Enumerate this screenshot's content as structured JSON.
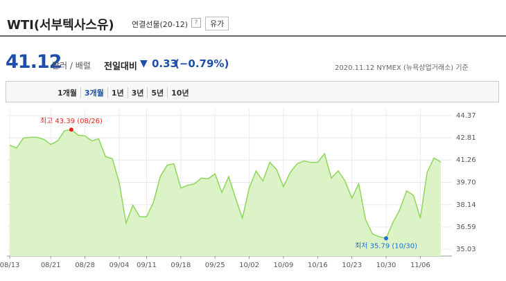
{
  "header": {
    "title": "WTI(서부텍사스유)",
    "subtitle": "연결선물(20-12)",
    "help": "?",
    "button": "유가"
  },
  "quote": {
    "price": "41.12",
    "unit": "달러 / 배럴",
    "change_label": "전일대비",
    "direction": "▼",
    "change": "0.33",
    "change_pct": "(−0.79%)",
    "asof": "2020.11.12 NYMEX (뉴욕상업거래소) 기준"
  },
  "tabs": {
    "items": [
      "1개월",
      "3개월",
      "1년",
      "3년",
      "5년",
      "10년"
    ],
    "selected": 1
  },
  "chart_data": {
    "type": "line",
    "categories": [
      "08/13",
      null,
      null,
      null,
      null,
      null,
      "08/21",
      null,
      null,
      null,
      null,
      "08/28",
      null,
      null,
      null,
      null,
      "09/04",
      null,
      null,
      null,
      "09/11",
      null,
      null,
      null,
      null,
      "09/18",
      null,
      null,
      null,
      null,
      "09/25",
      null,
      null,
      null,
      null,
      "10/02",
      null,
      null,
      null,
      null,
      "10/09",
      null,
      null,
      null,
      null,
      "10/16",
      null,
      null,
      null,
      null,
      "10/23",
      null,
      null,
      null,
      null,
      "10/30",
      null,
      null,
      null,
      null,
      "11/06",
      null,
      null,
      null
    ],
    "values": [
      42.3,
      42.1,
      42.8,
      42.85,
      42.85,
      42.7,
      42.35,
      42.6,
      43.3,
      43.39,
      43.0,
      42.95,
      42.6,
      42.75,
      41.5,
      41.35,
      39.7,
      36.85,
      38.1,
      37.3,
      37.3,
      38.3,
      40.1,
      40.9,
      41.0,
      39.3,
      39.5,
      39.6,
      40.0,
      39.95,
      40.3,
      39.0,
      40.1,
      38.6,
      37.2,
      39.3,
      40.5,
      39.8,
      41.1,
      40.6,
      39.4,
      40.4,
      41.0,
      41.2,
      41.1,
      41.1,
      41.7,
      40.0,
      40.5,
      39.8,
      38.6,
      39.6,
      37.1,
      36.1,
      35.9,
      35.79,
      36.9,
      37.8,
      39.1,
      38.8,
      37.2,
      40.4,
      41.4,
      41.12
    ],
    "color": "#8dd65a",
    "fill_color": "#dcf3c8",
    "ylim": [
      34.55,
      44.85
    ],
    "yticks": [
      35.03,
      36.59,
      38.14,
      {
        "value": 39.7,
        "label": "39.70"
      },
      41.26,
      42.81,
      44.37
    ],
    "grid": true,
    "annotations": [
      {
        "text": "최고 43.39 (08/26)",
        "kind": "max",
        "color": "#e0261c"
      },
      {
        "text": "최저 35.79 (10/30)",
        "kind": "min",
        "color": "#1d6fd1"
      }
    ]
  }
}
